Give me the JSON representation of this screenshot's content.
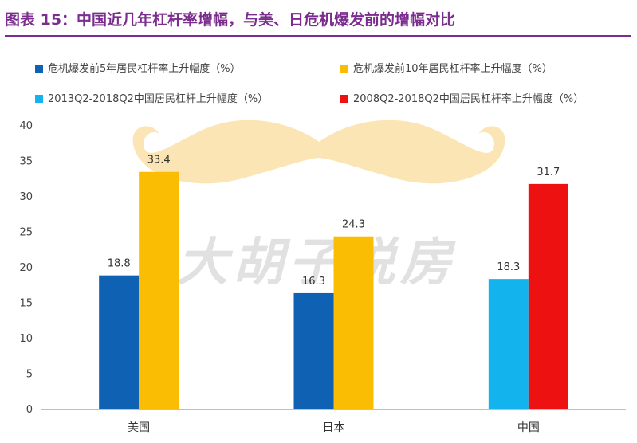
{
  "title": "图表 15：中国近几年杠杆率增幅，与美、日危机爆发前的增幅对比",
  "watermark": "大胡子说房",
  "colors": {
    "title": "#7b2d8e",
    "series1": "#0f61b4",
    "series2": "#fbbc04",
    "series3": "#13b4ee",
    "series4": "#ee1111"
  },
  "chart_data": {
    "type": "bar",
    "title": "图表 15：中国近几年杠杆率增幅，与美、日危机爆发前的增幅对比",
    "xlabel": "",
    "ylabel": "",
    "categories": [
      "美国",
      "日本",
      "中国"
    ],
    "yticks": [
      "0",
      "5",
      "10",
      "15",
      "20",
      "25",
      "30",
      "35",
      "40"
    ],
    "ylim": [
      0,
      40
    ],
    "grid": false,
    "legend_position": "top",
    "series": [
      {
        "name": "危机爆发前5年居民杠杆率上升幅度（%）",
        "color": "#0f61b4",
        "values": [
          18.8,
          16.3,
          null
        ],
        "labels": [
          "18.8",
          "16.3",
          ""
        ]
      },
      {
        "name": "危机爆发前10年居民杠杆率上升幅度（%）",
        "color": "#fbbc04",
        "values": [
          33.4,
          24.3,
          null
        ],
        "labels": [
          "33.4",
          "24.3",
          ""
        ]
      },
      {
        "name": "2013Q2-2018Q2中国居民杠杆上升幅度（%）",
        "color": "#13b4ee",
        "values": [
          null,
          null,
          18.3
        ],
        "labels": [
          "",
          "",
          "18.3"
        ]
      },
      {
        "name": "2008Q2-2018Q2中国居民杠杆率上升幅度（%）",
        "color": "#ee1111",
        "values": [
          null,
          null,
          31.7
        ],
        "labels": [
          "",
          "",
          "31.7"
        ]
      }
    ]
  }
}
